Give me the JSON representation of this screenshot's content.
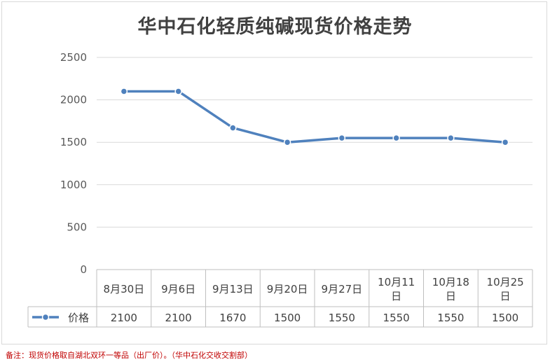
{
  "chart_data": {
    "type": "line",
    "title": "华中石化轻质纯碱现货价格走势",
    "categories": [
      [
        "8月30日"
      ],
      [
        "9月6日"
      ],
      [
        "9月13日"
      ],
      [
        "9月20日"
      ],
      [
        "9月27日"
      ],
      [
        "10月11",
        "日"
      ],
      [
        "10月18",
        "日"
      ],
      [
        "10月25",
        "日"
      ]
    ],
    "series": [
      {
        "name": "价格",
        "values": [
          2100,
          2100,
          1670,
          1500,
          1550,
          1550,
          1550,
          1500
        ]
      }
    ],
    "ylim": [
      0,
      2500
    ],
    "yticks": [
      "0",
      "500",
      "1000",
      "1500",
      "2000",
      "2500"
    ],
    "grid": true,
    "legend": "data-table",
    "line_color": "#4f81bd"
  },
  "footnote": "备注：现货价格取自湖北双环一等品（出厂价）。（华中石化交收交割部）"
}
